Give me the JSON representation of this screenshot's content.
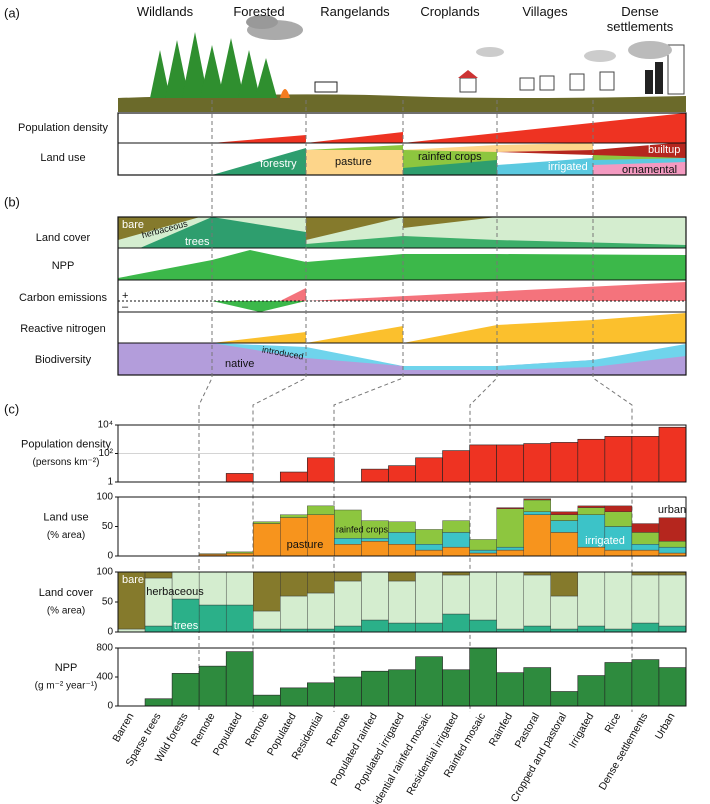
{
  "panels": [
    "(a)",
    "(b)",
    "(c)"
  ],
  "zones": [
    "Wildlands",
    "Forested",
    "Rangelands",
    "Croplands",
    "Villages",
    "Dense settlements"
  ],
  "panel_a": {
    "rows": [
      "Population density",
      "Land use"
    ],
    "labels": {
      "forestry": "forestry",
      "pasture": "pasture",
      "rainfed": "rainfed crops",
      "irrigated": "irrigated",
      "builtup": "builtup",
      "ornamental": "ornamental"
    }
  },
  "panel_b": {
    "rows": [
      "Land cover",
      "NPP",
      "Carbon emissions",
      "Reactive nitrogen",
      "Biodiversity"
    ],
    "labels": {
      "bare": "bare",
      "herbaceous": "herbaceous",
      "trees": "trees",
      "plus": "+",
      "minus": "–",
      "native": "native",
      "introduced": "introduced"
    }
  },
  "chart_data": [
    {
      "type": "bar",
      "ylabel": "Population density",
      "yunits": "(persons km⁻²)",
      "log_scale": true,
      "grid": true,
      "color": "#ee3322",
      "ylim": [
        1,
        10000
      ],
      "yticks": [
        1,
        {
          "value": 100,
          "label": "10²"
        },
        {
          "value": 10000,
          "label": "10⁴"
        }
      ],
      "values": [
        1,
        1,
        1,
        1,
        4,
        1,
        5,
        50,
        1,
        8,
        14,
        50,
        160,
        400,
        400,
        500,
        600,
        1000,
        1600,
        1600,
        7000
      ]
    },
    {
      "type": "stacked_bar",
      "ylabel": "Land use",
      "yunits": "(% area)",
      "ylim": [
        0,
        100
      ],
      "yticks": [
        0,
        50,
        100
      ],
      "series": [
        {
          "name": "pasture",
          "color": "#f7941d",
          "values": [
            0,
            0,
            0,
            3,
            5,
            55,
            65,
            70,
            20,
            25,
            20,
            10,
            15,
            5,
            10,
            70,
            40,
            15,
            10,
            10,
            5
          ]
        },
        {
          "name": "irrigated",
          "color": "#3cc3c8",
          "values": [
            0,
            0,
            0,
            0,
            0,
            0,
            0,
            0,
            10,
            5,
            20,
            10,
            25,
            5,
            5,
            5,
            20,
            55,
            40,
            10,
            10
          ]
        },
        {
          "name": "rainfed crops",
          "color": "#8dc63f",
          "values": [
            0,
            0,
            0,
            1,
            2,
            3,
            5,
            15,
            48,
            30,
            18,
            25,
            20,
            18,
            65,
            20,
            10,
            12,
            25,
            20,
            10
          ]
        },
        {
          "name": "urban",
          "color": "#b5261e",
          "values": [
            0,
            0,
            0,
            0,
            0,
            0,
            0,
            0,
            0,
            0,
            0,
            0,
            0,
            0,
            2,
            2,
            5,
            3,
            10,
            15,
            40
          ]
        }
      ]
    },
    {
      "type": "stacked_bar",
      "ylabel": "Land cover",
      "yunits": "(% area)",
      "ylim": [
        0,
        100
      ],
      "yticks": [
        0,
        50,
        100
      ],
      "series": [
        {
          "name": "trees",
          "color": "#2bb089",
          "values": [
            0,
            10,
            55,
            45,
            45,
            5,
            5,
            5,
            10,
            20,
            15,
            15,
            30,
            20,
            5,
            10,
            5,
            10,
            5,
            15,
            10
          ]
        },
        {
          "name": "herbaceous",
          "color": "#d4edcf",
          "values": [
            5,
            80,
            45,
            55,
            55,
            30,
            55,
            60,
            75,
            80,
            70,
            85,
            65,
            80,
            95,
            85,
            55,
            90,
            95,
            80,
            85
          ]
        },
        {
          "name": "bare",
          "color": "#857a2c",
          "values": [
            95,
            10,
            0,
            0,
            0,
            65,
            40,
            35,
            15,
            0,
            15,
            0,
            5,
            0,
            0,
            5,
            40,
            0,
            0,
            5,
            5
          ]
        }
      ]
    },
    {
      "type": "bar",
      "ylabel": "NPP",
      "yunits": "(g m⁻² year⁻¹)",
      "color": "#2e8b3e",
      "ylim": [
        0,
        800
      ],
      "yticks": [
        0,
        400,
        800
      ],
      "categories": [
        "Barren",
        "Sparse trees",
        "Wild forests",
        "Remote",
        "Populated",
        "Remote",
        "Populated",
        "Residential",
        "Remote",
        "Populated rainfed",
        "Populated irrigated",
        "Residential rainfed mosaic",
        "Residential irrigated",
        "Rainfed mosaic",
        "Rainfed",
        "Pastoral",
        "Cropped and pastoral",
        "Irrigated",
        "Rice",
        "Dense settlements",
        "Urban"
      ],
      "values": [
        0,
        100,
        450,
        550,
        750,
        150,
        250,
        320,
        400,
        480,
        500,
        680,
        500,
        800,
        460,
        530,
        200,
        420,
        600,
        640,
        530
      ]
    }
  ]
}
